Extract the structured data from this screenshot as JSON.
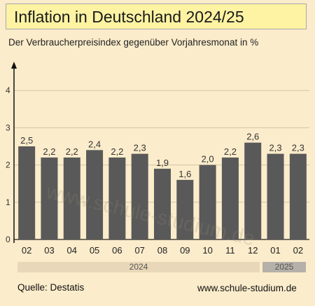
{
  "title": "Inflation in Deutschland 2024/25",
  "subtitle": "Der Verbraucherpreisindex gegenüber Vorjahresmonat in %",
  "watermark": "www.schule-studium.de",
  "source": "Quelle: Destatis",
  "website": "www.schule-studium.de",
  "years": [
    "2024",
    "2025"
  ],
  "colors": {
    "bar": "#595959",
    "background": "#fbeccb",
    "title_background": "#fdf3a3"
  },
  "chart_data": {
    "type": "bar",
    "title": "Inflation in Deutschland 2024/25",
    "categories": [
      "02",
      "03",
      "04",
      "05",
      "06",
      "07",
      "08",
      "09",
      "10",
      "11",
      "12",
      "01",
      "02"
    ],
    "values": [
      2.5,
      2.2,
      2.2,
      2.4,
      2.2,
      2.3,
      1.9,
      1.6,
      2.0,
      2.2,
      2.6,
      2.3,
      2.3
    ],
    "data_labels": [
      "2,5",
      "2,2",
      "2,2",
      "2,4",
      "2,2",
      "2,3",
      "1,9",
      "1,6",
      "2,0",
      "2,2",
      "2,6",
      "2,3",
      "2,3"
    ],
    "y_ticks": [
      "0",
      "1",
      "2",
      "3",
      "4"
    ],
    "ylim": [
      0,
      4.5
    ],
    "grid": true,
    "xlabel": "",
    "ylabel": ""
  }
}
